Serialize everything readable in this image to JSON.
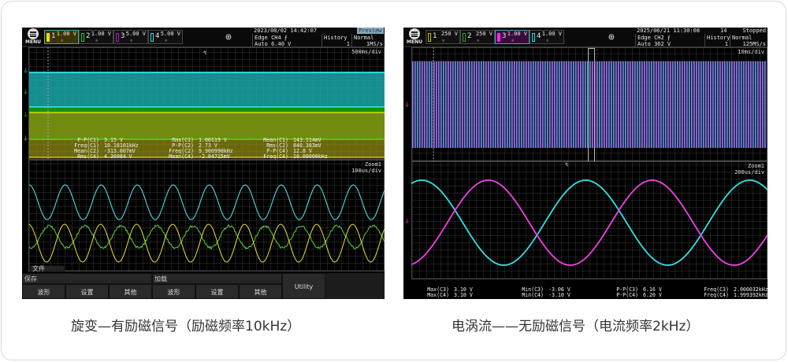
{
  "captions": {
    "left": "旋变—有励磁信号（励磁频率10kHz）",
    "right": "电涡流——无励磁信号（电流频率2kHz）"
  },
  "left_scope": {
    "menu_label": "MENU",
    "channels": [
      {
        "num": "1",
        "volts": "1.00 V",
        "color": "#f0e000",
        "selected": true
      },
      {
        "num": "2",
        "volts": "1.00 V",
        "color": "#22cc22",
        "selected": false
      },
      {
        "num": "3",
        "volts": "5.00 V",
        "color": "#aa22cc",
        "selected": false
      },
      {
        "num": "4",
        "volts": "5.00 V",
        "color": "#22dddd",
        "selected": false
      }
    ],
    "datetime": "2023/08/02 14:42:07",
    "status": "Preview",
    "trigger": "Edge CH4 ⨍",
    "trigger_level": "Auto 6.40 V",
    "history_label": "History",
    "history_value": "1",
    "mode": "Normal",
    "sample_rate": "1MS/s",
    "main_timebase": "500ms/div",
    "zoom_label": "Zoom1",
    "zoom_timebase": "100us/div",
    "measurements": [
      [
        "P-P(C1)",
        "3.15 V"
      ],
      [
        "Freq(C1)",
        "10.10101kHz"
      ],
      [
        "Mean(C2)",
        "-313.007mV"
      ],
      [
        "Rms(C4)",
        "4.36984 V"
      ],
      [
        "Rms(C1)",
        "1.00119 V"
      ],
      [
        "P-P(C2)",
        "2.73 V"
      ],
      [
        "Freq(C2)",
        "9.900990kHz"
      ],
      [
        "Mean(C4)",
        "-2.84715mV"
      ],
      [
        "Mean(C1)",
        "143.114mV"
      ],
      [
        "Rms(C2)",
        "840.383mV"
      ],
      [
        "P-P(C4)",
        "12.8 V"
      ],
      [
        "Freq(C4)",
        "10.00000kHz"
      ]
    ],
    "file_tab": "文件",
    "groups": {
      "save": "保存",
      "load": "加载"
    },
    "buttons": [
      "波形",
      "设置",
      "其他",
      "波形",
      "设置",
      "其他",
      "Utility"
    ]
  },
  "right_scope": {
    "menu_label": "MENU",
    "channels": [
      {
        "num": "1",
        "volts": "250 V",
        "color": "#c8b400",
        "selected": false
      },
      {
        "num": "2",
        "volts": "250 V",
        "color": "#22aa22",
        "selected": false
      },
      {
        "num": "3",
        "volts": "1.00 V",
        "color": "#ff22ff",
        "selected": true
      },
      {
        "num": "4",
        "volts": "1.00 V",
        "color": "#22dddd",
        "selected": false
      }
    ],
    "datetime": "2025/06/21 11:30:08",
    "acq_count": "14",
    "status": "Stopped",
    "trigger": "Edge CH2 ⨍",
    "trigger_level": "Auto 362 V",
    "history_label": "History",
    "history_value": "1",
    "mode": "Normal",
    "sample_rate": "125MS/s",
    "main_timebase": "10ms/div",
    "zoom_label": "Zoom1",
    "zoom_timebase": "200us/div",
    "measurements": [
      [
        "Max(C3)",
        "3.10 V"
      ],
      [
        "Max(C4)",
        "3.10 V"
      ],
      [
        "Min(C3)",
        "-3.06 V"
      ],
      [
        "Min(C4)",
        "-3.10 V"
      ],
      [
        "P-P(C3)",
        "6.16 V"
      ],
      [
        "P-P(C4)",
        "6.20 V"
      ],
      [
        "Freq(C3)",
        "2.000032kHz"
      ],
      [
        "Freq(C4)",
        "1.999392kHz"
      ]
    ]
  }
}
